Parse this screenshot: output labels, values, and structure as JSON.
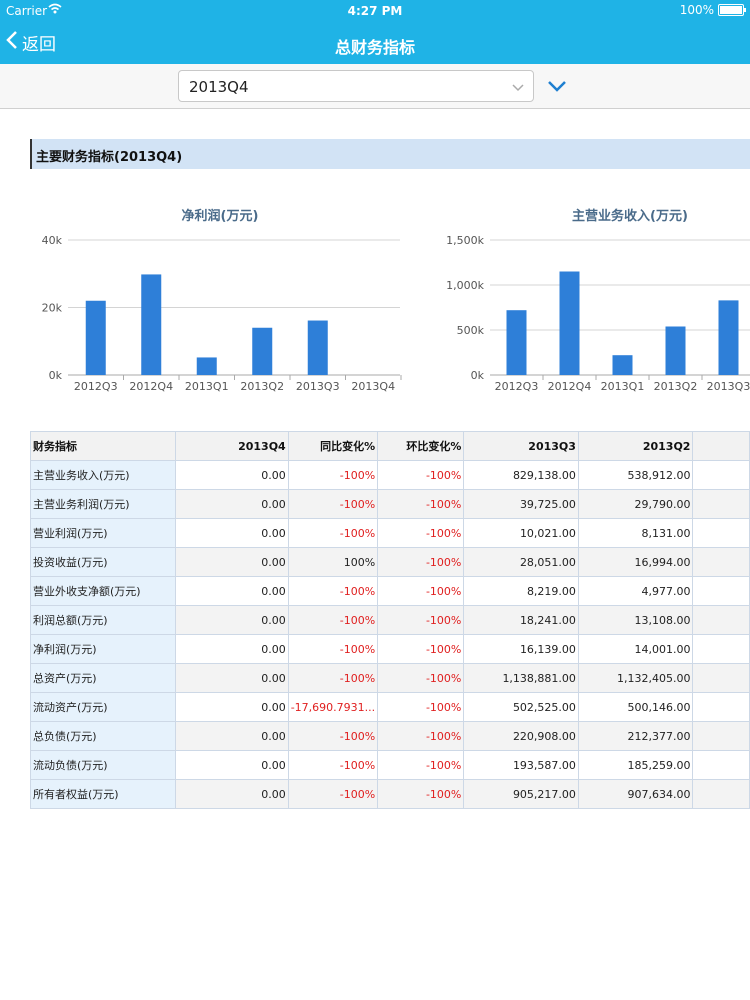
{
  "status_bar": {
    "carrier": "Carrier",
    "time": "4:27 PM",
    "battery": "100%"
  },
  "nav": {
    "back_label": "返回",
    "title": "总财务指标"
  },
  "selector": {
    "value": "2013Q4"
  },
  "section": {
    "title": "主要财务指标(2013Q4)"
  },
  "colors": {
    "nav_bar": "#1fb3e6",
    "bar": "#2e7fd8",
    "section_bg": "#d2e3f5",
    "negative": "#e02020"
  },
  "chart_data": [
    {
      "type": "bar",
      "title": "净利润(万元)",
      "categories": [
        "2012Q3",
        "2012Q4",
        "2013Q1",
        "2013Q2",
        "2013Q3",
        "2013Q4"
      ],
      "values": [
        22000,
        29800,
        5200,
        14000,
        16139,
        0
      ],
      "ylim": [
        0,
        40000
      ],
      "yticks": [
        0,
        20000,
        40000
      ],
      "ytick_labels": [
        "0k",
        "20k",
        "40k"
      ],
      "xlabel": "",
      "ylabel": "",
      "grid": true
    },
    {
      "type": "bar",
      "title": "主营业务收入(万元)",
      "categories": [
        "2012Q3",
        "2012Q4",
        "2013Q1",
        "2013Q2",
        "2013Q3"
      ],
      "values": [
        720000,
        1150000,
        220000,
        538912,
        829138
      ],
      "ylim": [
        0,
        1500000
      ],
      "yticks": [
        0,
        500000,
        1000000,
        1500000
      ],
      "ytick_labels": [
        "0k",
        "500k",
        "1,000k",
        "1,500k"
      ],
      "xlabel": "",
      "ylabel": "",
      "grid": true
    }
  ],
  "table": {
    "headers": [
      "财务指标",
      "2013Q4",
      "同比变化%",
      "环比变化%",
      "2013Q3",
      "2013Q2"
    ],
    "rows": [
      [
        "主营业务收入(万元)",
        "0.00",
        "-100%",
        "-100%",
        "829,138.00",
        "538,912.00"
      ],
      [
        "主营业务利润(万元)",
        "0.00",
        "-100%",
        "-100%",
        "39,725.00",
        "29,790.00"
      ],
      [
        "营业利润(万元)",
        "0.00",
        "-100%",
        "-100%",
        "10,021.00",
        "8,131.00"
      ],
      [
        "投资收益(万元)",
        "0.00",
        "100%",
        "-100%",
        "28,051.00",
        "16,994.00"
      ],
      [
        "营业外收支净额(万元)",
        "0.00",
        "-100%",
        "-100%",
        "8,219.00",
        "4,977.00"
      ],
      [
        "利润总额(万元)",
        "0.00",
        "-100%",
        "-100%",
        "18,241.00",
        "13,108.00"
      ],
      [
        "净利润(万元)",
        "0.00",
        "-100%",
        "-100%",
        "16,139.00",
        "14,001.00"
      ],
      [
        "总资产(万元)",
        "0.00",
        "-100%",
        "-100%",
        "1,138,881.00",
        "1,132,405.00"
      ],
      [
        "流动资产(万元)",
        "0.00",
        "-17,690.7931...",
        "-100%",
        "502,525.00",
        "500,146.00"
      ],
      [
        "总负债(万元)",
        "0.00",
        "-100%",
        "-100%",
        "220,908.00",
        "212,377.00"
      ],
      [
        "流动负债(万元)",
        "0.00",
        "-100%",
        "-100%",
        "193,587.00",
        "185,259.00"
      ],
      [
        "所有者权益(万元)",
        "0.00",
        "-100%",
        "-100%",
        "905,217.00",
        "907,634.00"
      ]
    ]
  }
}
